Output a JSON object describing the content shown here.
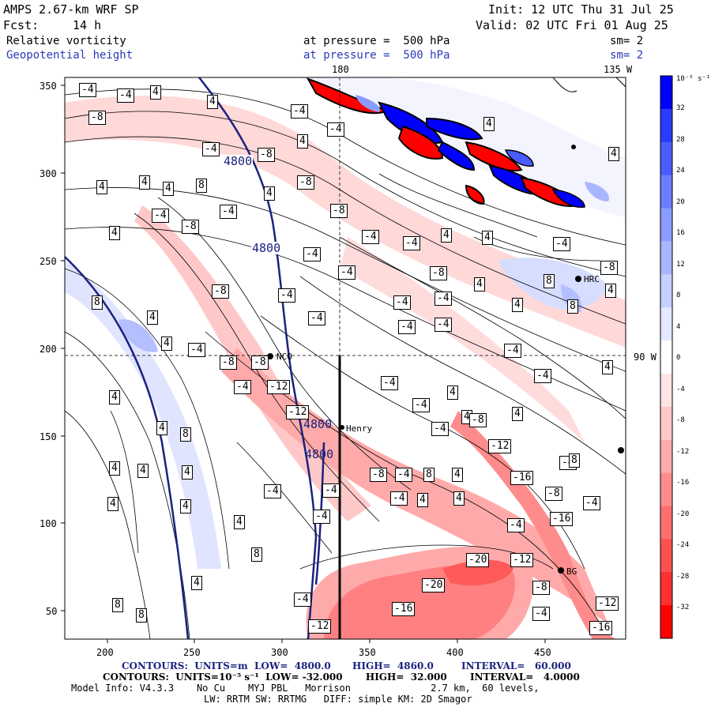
{
  "header": {
    "model": "AMPS 2.67-km WRF SP",
    "fcst_label": "Fcst:",
    "fcst_value": "14 h",
    "init": "Init: 12 UTC Thu 31 Jul 25",
    "valid": "Valid: 02 UTC Fri 01 Aug 25",
    "field1": "Relative vorticity",
    "field1_level": "at pressure =  500 hPa",
    "field1_sm": "sm= 2",
    "field2": "Geopotential height",
    "field2_level": "at pressure =  500 hPa",
    "field2_sm": "sm= 2"
  },
  "map": {
    "lon_label_top1": "180",
    "lon_label_top2": "135 W",
    "lon_label_right": "90 W",
    "x_ticks": [
      "200",
      "250",
      "300",
      "350",
      "400",
      "450"
    ],
    "y_ticks": [
      "350",
      "300",
      "250",
      "200",
      "150",
      "100",
      "50"
    ],
    "height_contour_labels": [
      "4800",
      "4800",
      "4800",
      "4800"
    ],
    "stations": [
      "NCO",
      "Henry",
      "HRC",
      "BG"
    ],
    "vorticity_labels": [
      "-4",
      "4",
      "-8",
      "-12",
      "-16",
      "-20",
      "8"
    ]
  },
  "colorbar": {
    "unit": "10⁻⁵ s⁻¹",
    "ticks": [
      "32",
      "28",
      "24",
      "20",
      "16",
      "12",
      "8",
      "4",
      "0",
      "-4",
      "-8",
      "-12",
      "-16",
      "-20",
      "-24",
      "-28",
      "-32"
    ],
    "colors": [
      "#0000ff",
      "#2a3bff",
      "#4a5cff",
      "#6a7dff",
      "#8a9cff",
      "#a8b6ff",
      "#c6d0ff",
      "#e4e9ff",
      "#ffffff",
      "#ffe4e4",
      "#ffc8c8",
      "#ffaaaa",
      "#ff8c8c",
      "#ff6e6e",
      "#ff5050",
      "#ff3030",
      "#ff0000"
    ]
  },
  "footer": {
    "line1_a": "CONTOURS:  UNITS=m  LOW=  4800.0",
    "line1_b": "HIGH=  4860.0",
    "line1_c": "INTERVAL=   60.000",
    "line2": "CONTOURS:  UNITS=10⁻⁵ s⁻¹  LOW= -32.000       HIGH=  32.000       INTERVAL=   4.0000",
    "line3": "Model Info: V4.3.3    No Cu    MYJ PBL   Morrison              2.7 km,  60 levels,",
    "line4": "LW: RRTM SW: RRTMG   DIFF: simple KM: 2D Smagor"
  }
}
